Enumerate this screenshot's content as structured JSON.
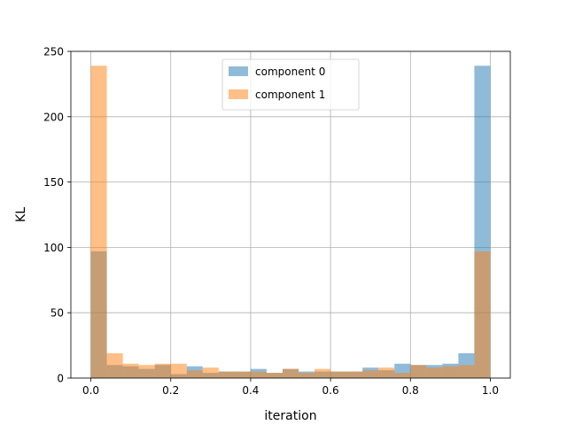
{
  "chart_data": {
    "type": "bar",
    "xlabel": "iteration",
    "ylabel": "KL",
    "xlim": [
      -0.05,
      1.05
    ],
    "ylim": [
      0,
      250
    ],
    "xticks": [
      0.0,
      0.2,
      0.4,
      0.6,
      0.8,
      1.0
    ],
    "xtick_labels": [
      "0.0",
      "0.2",
      "0.4",
      "0.6",
      "0.8",
      "1.0"
    ],
    "yticks": [
      0,
      50,
      100,
      150,
      200,
      250
    ],
    "ytick_labels": [
      "0",
      "50",
      "100",
      "150",
      "200",
      "250"
    ],
    "grid": true,
    "legend_position": "top-center",
    "bin_edges": [
      0.0,
      0.04,
      0.08,
      0.12,
      0.16,
      0.2,
      0.24,
      0.28,
      0.32,
      0.36,
      0.4,
      0.44,
      0.48,
      0.52,
      0.56,
      0.6,
      0.64,
      0.68,
      0.72,
      0.76,
      0.8,
      0.84,
      0.88,
      0.92,
      0.96,
      1.0
    ],
    "series": [
      {
        "name": "component 0",
        "color": "#1f77b4",
        "values": [
          97,
          10,
          9,
          7,
          10,
          3,
          9,
          4,
          5,
          5,
          7,
          4,
          7,
          5,
          5,
          5,
          5,
          8,
          6,
          11,
          10,
          10,
          11,
          19,
          239
        ]
      },
      {
        "name": "component 1",
        "color": "#ff7f0e",
        "values": [
          239,
          19,
          11,
          10,
          11,
          11,
          6,
          8,
          5,
          5,
          5,
          4,
          7,
          4,
          7,
          5,
          5,
          6,
          8,
          4,
          10,
          8,
          9,
          10,
          97
        ]
      }
    ]
  }
}
